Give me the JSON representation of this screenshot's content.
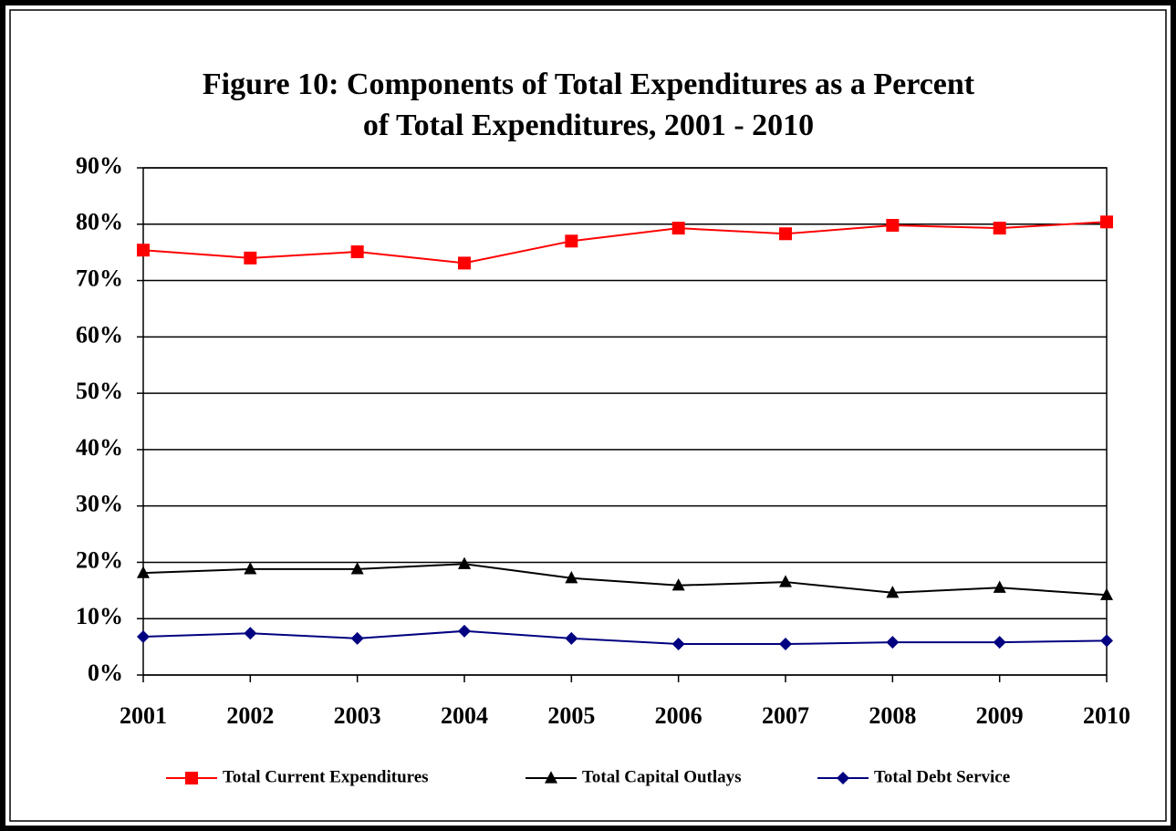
{
  "chart_data": {
    "type": "line",
    "title": [
      "Figure 10:  Components of Total Expenditures as a Percent",
      "of Total Expenditures, 2001 - 2010"
    ],
    "categories": [
      "2001",
      "2002",
      "2003",
      "2004",
      "2005",
      "2006",
      "2007",
      "2008",
      "2009",
      "2010"
    ],
    "series": [
      {
        "name": "Total Current Expenditures",
        "color": "#ff0000",
        "marker": "square",
        "values": [
          75.4,
          74.0,
          75.1,
          73.1,
          77.0,
          79.3,
          78.3,
          79.8,
          79.3,
          80.4
        ]
      },
      {
        "name": "Total Capital Outlays",
        "color": "#000000",
        "marker": "triangle",
        "values": [
          18.1,
          18.8,
          18.8,
          19.7,
          17.2,
          15.9,
          16.5,
          14.6,
          15.5,
          14.2
        ]
      },
      {
        "name": "Total Debt Service",
        "color": "#000080",
        "marker": "diamond",
        "values": [
          6.8,
          7.4,
          6.5,
          7.8,
          6.5,
          5.5,
          5.5,
          5.8,
          5.8,
          6.1
        ]
      }
    ],
    "ylim": [
      0,
      90
    ],
    "yticks": [
      {
        "value": 0,
        "label": "0%"
      },
      {
        "value": 10,
        "label": "10%"
      },
      {
        "value": 20,
        "label": "20%"
      },
      {
        "value": 30,
        "label": "30%"
      },
      {
        "value": 40,
        "label": "40%"
      },
      {
        "value": 50,
        "label": "50%"
      },
      {
        "value": 60,
        "label": "60%"
      },
      {
        "value": 70,
        "label": "70%"
      },
      {
        "value": 80,
        "label": "80%"
      },
      {
        "value": 90,
        "label": "90%"
      }
    ],
    "grid": true,
    "legend": "bottom"
  }
}
